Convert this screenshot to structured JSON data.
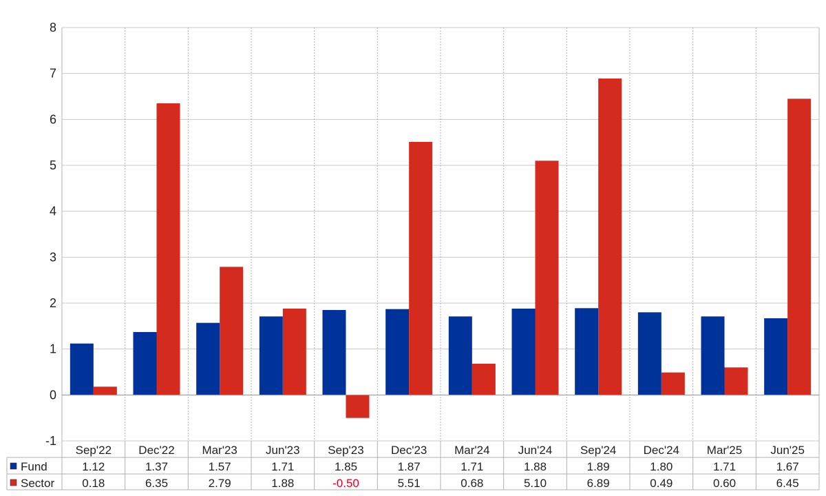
{
  "chart_data": {
    "type": "bar",
    "categories": [
      "Sep'22",
      "Dec'22",
      "Mar'23",
      "Jun'23",
      "Sep'23",
      "Dec'23",
      "Mar'24",
      "Jun'24",
      "Sep'24",
      "Dec'24",
      "Mar'25",
      "Jun'25"
    ],
    "series": [
      {
        "name": "Fund",
        "color": "#003399",
        "values": [
          1.12,
          1.37,
          1.57,
          1.71,
          1.85,
          1.87,
          1.71,
          1.88,
          1.89,
          1.8,
          1.71,
          1.67
        ],
        "labels": [
          "1.12",
          "1.37",
          "1.57",
          "1.71",
          "1.85",
          "1.87",
          "1.71",
          "1.88",
          "1.89",
          "1.80",
          "1.71",
          "1.67"
        ]
      },
      {
        "name": "Sector",
        "color": "#d52b1e",
        "values": [
          0.18,
          6.35,
          2.79,
          1.88,
          -0.5,
          5.51,
          0.68,
          5.1,
          6.89,
          0.49,
          0.6,
          6.45
        ],
        "labels": [
          "0.18",
          "6.35",
          "2.79",
          "1.88",
          "-0.50",
          "5.51",
          "0.68",
          "5.10",
          "6.89",
          "0.49",
          "0.60",
          "6.45"
        ]
      }
    ],
    "ylim": [
      -1,
      8
    ],
    "yticks": [
      "-1",
      "0",
      "1",
      "2",
      "3",
      "4",
      "5",
      "6",
      "7",
      "8"
    ],
    "grid": true,
    "legend": "data-table-below"
  }
}
